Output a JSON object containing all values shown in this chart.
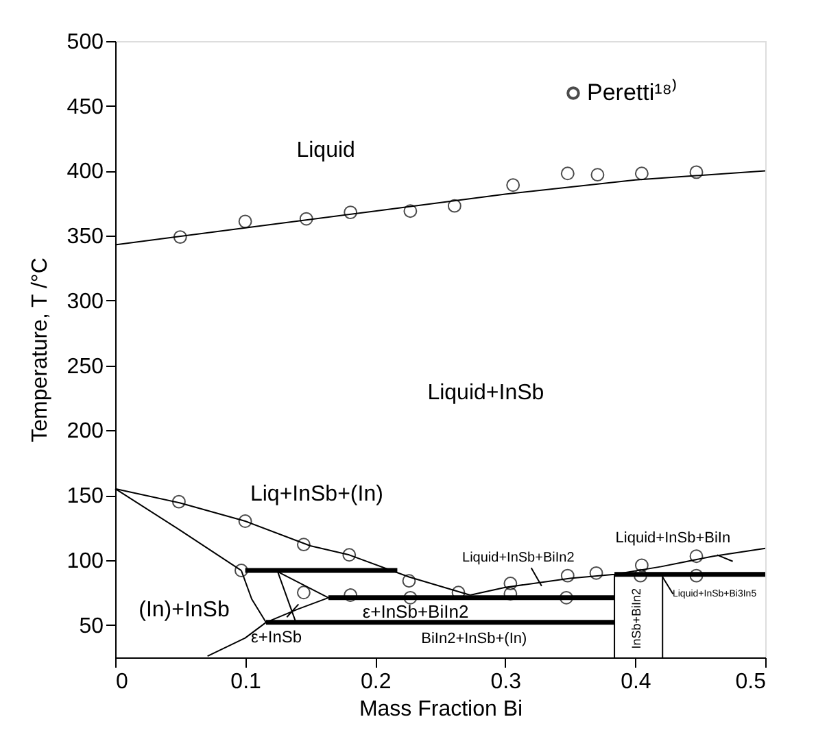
{
  "chart_data": {
    "type": "line",
    "xlabel": "Mass Fraction  Bi",
    "ylabel": "Temperature, T /°C",
    "xlim": [
      0,
      0.5
    ],
    "ylim": [
      25,
      500
    ],
    "xticks": [
      0,
      0.1,
      0.2,
      0.3,
      0.4,
      0.5
    ],
    "yticks": [
      50,
      100,
      150,
      200,
      250,
      300,
      350,
      400,
      450,
      500
    ],
    "grid": false,
    "legend": "top right",
    "series": [
      {
        "type": "line",
        "color": "#000000",
        "x": [
          0,
          0.1,
          0.2,
          0.3,
          0.4,
          0.5
        ],
        "values": [
          343,
          356,
          369,
          382,
          393,
          400
        ]
      },
      {
        "type": "line",
        "color": "#000000",
        "x": [
          0,
          0.05,
          0.1,
          0.15,
          0.18,
          0.226,
          0.273
        ],
        "values": [
          155,
          144,
          130,
          111,
          104,
          87,
          73
        ]
      },
      {
        "type": "line",
        "color": "#000000",
        "x": [
          0.273,
          0.3,
          0.35,
          0.384,
          0.42,
          0.46,
          0.5
        ],
        "values": [
          73,
          79,
          86,
          89,
          95,
          103,
          109
        ]
      },
      {
        "type": "line",
        "color": "#000000",
        "x": [
          0,
          0.05,
          0.097
        ],
        "values": [
          155,
          123,
          92
        ]
      },
      {
        "type": "line",
        "color": "#000000",
        "x": [
          0.097,
          0.105,
          0.116
        ],
        "values": [
          92,
          70,
          52
        ]
      },
      {
        "type": "line",
        "color": "#000000",
        "x": [
          0.125,
          0.139
        ],
        "values": [
          91,
          52
        ]
      },
      {
        "type": "line",
        "color": "#000000",
        "x": [
          0.125,
          0.164
        ],
        "values": [
          91,
          71
        ]
      },
      {
        "type": "line",
        "color": "#000000",
        "x": [
          0.071,
          0.1,
          0.116,
          0.14,
          0.164
        ],
        "values": [
          26,
          40,
          52,
          62,
          71
        ]
      },
      {
        "type": "line",
        "color": "#000000",
        "x": [
          0.1,
          0.217
        ],
        "values": [
          92,
          92
        ]
      },
      {
        "type": "line",
        "color": "#000000",
        "x": [
          0.164,
          0.384
        ],
        "values": [
          71,
          71
        ]
      },
      {
        "type": "line",
        "color": "#000000",
        "x": [
          0.116,
          0.384
        ],
        "values": [
          52,
          52
        ]
      },
      {
        "type": "line",
        "color": "#000000",
        "x": [
          0.384,
          0.5
        ],
        "values": [
          89,
          89
        ]
      },
      {
        "type": "line",
        "color": "#000000",
        "x": [
          0.384,
          0.384
        ],
        "values": [
          25,
          89
        ]
      },
      {
        "type": "line",
        "color": "#000000",
        "x": [
          0.421,
          0.421
        ],
        "values": [
          25,
          89
        ]
      },
      {
        "type": "line",
        "color": "#000000",
        "x": [
          0.32,
          0.328
        ],
        "values": [
          94,
          80
        ]
      },
      {
        "type": "line",
        "color": "#000000",
        "x": [
          0.463,
          0.475
        ],
        "values": [
          104,
          99
        ]
      },
      {
        "type": "line",
        "color": "#000000",
        "x": [
          0.421,
          0.429
        ],
        "values": [
          87,
          74
        ]
      },
      {
        "type": "line",
        "color": "#000000",
        "x": [
          0.132,
          0.141
        ],
        "values": [
          56,
          66
        ]
      },
      {
        "type": "scatter",
        "name": "Peretti¹⁸⁾",
        "color": "#000000",
        "marker": "circle",
        "x": [
          0.05,
          0.1,
          0.147,
          0.181,
          0.227,
          0.261,
          0.306,
          0.348,
          0.371,
          0.405,
          0.447,
          0.049,
          0.1,
          0.145,
          0.18,
          0.226,
          0.264,
          0.304,
          0.348,
          0.37,
          0.405,
          0.447,
          0.097,
          0.145,
          0.181,
          0.227,
          0.304,
          0.347,
          0.404,
          0.447
        ],
        "values": [
          349,
          361,
          363,
          368,
          369,
          373,
          389,
          398,
          397,
          398,
          399,
          145,
          130,
          112,
          104,
          84,
          75,
          82,
          88,
          90,
          96,
          103,
          92,
          75,
          73,
          71,
          74,
          71,
          88,
          88
        ]
      }
    ],
    "annotations": [
      "Liquid",
      "Liquid+InSb",
      "Liq+InSb+(In)",
      "(In)+InSb",
      "ε+InSb",
      "ε+InSb+BiIn2",
      "BiIn2+InSb+(In)",
      "Liquid+InSb+BiIn2",
      "Liquid+InSb+BiIn",
      "Liquid+InSb+Bi3In5",
      "InSb+BiIn2"
    ]
  }
}
